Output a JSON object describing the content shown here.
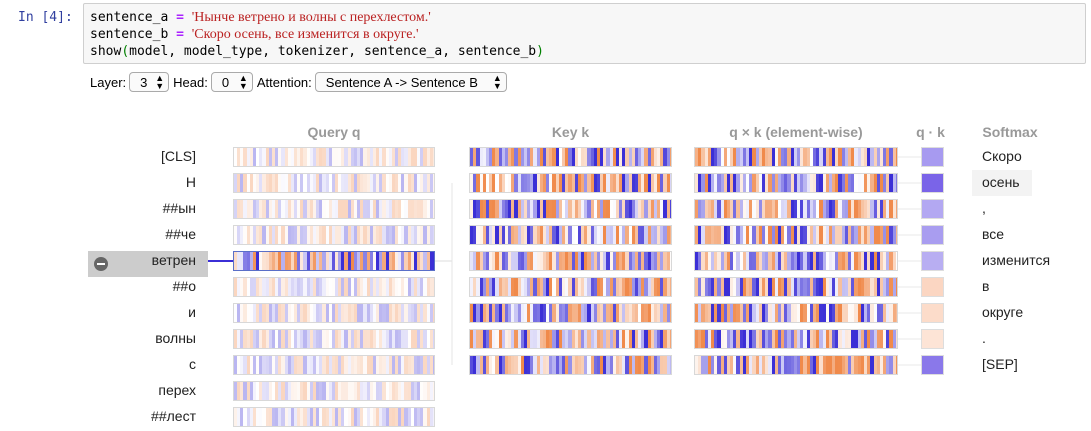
{
  "cell": {
    "prompt": "In [4]:",
    "lines": [
      {
        "var": "sentence_a",
        "op": " = ",
        "str": "'Нынче ветрено и волны с перехлестом.'"
      },
      {
        "var": "sentence_b",
        "op": " = ",
        "str": "'Скоро осень, все изменится в округе.'"
      },
      {
        "call": "show",
        "args": "model, model_type, tokenizer, sentence_a, sentence_b"
      }
    ]
  },
  "controls": {
    "layer_label": "Layer:",
    "layer_value": "3",
    "head_label": "Head:",
    "head_value": "0",
    "attention_label": "Attention:",
    "attention_value": "Sentence A -> Sentence B"
  },
  "headers": {
    "query": "Query q",
    "key": "Key k",
    "qk_elementwise": "q × k (element-wise)",
    "qk_dot": "q · k",
    "softmax": "Softmax"
  },
  "left_tokens": [
    "[CLS]",
    "Н",
    "##ын",
    "##че",
    "ветрен",
    "##о",
    "и",
    "волны",
    "с",
    "перех",
    "##лест"
  ],
  "selected_left_index": 4,
  "right_tokens": [
    "Скоро",
    "осень",
    ",",
    "все",
    "изменится",
    "в",
    "округе",
    ".",
    "[SEP]"
  ],
  "highlighted_right_index": 1,
  "dot_product_colors": [
    "#a79af0",
    "#7a64e8",
    "#b3a8f2",
    "#a99df0",
    "#b8aef2",
    "#fbd6c2",
    "#fcdcca",
    "#fde4d6",
    "#8a78ea"
  ],
  "palette": {
    "blue": "#3b2fd6",
    "orange": "#f08a4b"
  }
}
